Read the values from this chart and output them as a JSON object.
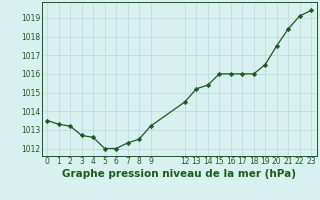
{
  "x": [
    0,
    1,
    2,
    3,
    4,
    5,
    6,
    7,
    8,
    9,
    12,
    13,
    14,
    15,
    16,
    17,
    18,
    19,
    20,
    21,
    22,
    23
  ],
  "y": [
    1013.5,
    1013.3,
    1013.2,
    1012.7,
    1012.6,
    1012.0,
    1012.0,
    1012.3,
    1012.5,
    1013.2,
    1014.5,
    1015.2,
    1015.4,
    1016.0,
    1016.0,
    1016.0,
    1016.0,
    1016.5,
    1017.5,
    1018.4,
    1019.1,
    1019.4
  ],
  "line_color": "#1a5c1a",
  "marker": "D",
  "marker_size": 2.2,
  "background_color": "#d8f0f0",
  "grid_color": "#b8d8d8",
  "xlabel": "Graphe pression niveau de la mer (hPa)",
  "xlabel_fontsize": 7.5,
  "ylabel_ticks": [
    1012,
    1013,
    1014,
    1015,
    1016,
    1017,
    1018,
    1019
  ],
  "xticks": [
    0,
    1,
    2,
    3,
    4,
    5,
    6,
    7,
    8,
    9,
    12,
    13,
    14,
    15,
    16,
    17,
    18,
    19,
    20,
    21,
    22,
    23
  ],
  "tick_fontsize": 5.5,
  "ylim": [
    1011.6,
    1019.85
  ],
  "xlim": [
    -0.5,
    23.5
  ]
}
